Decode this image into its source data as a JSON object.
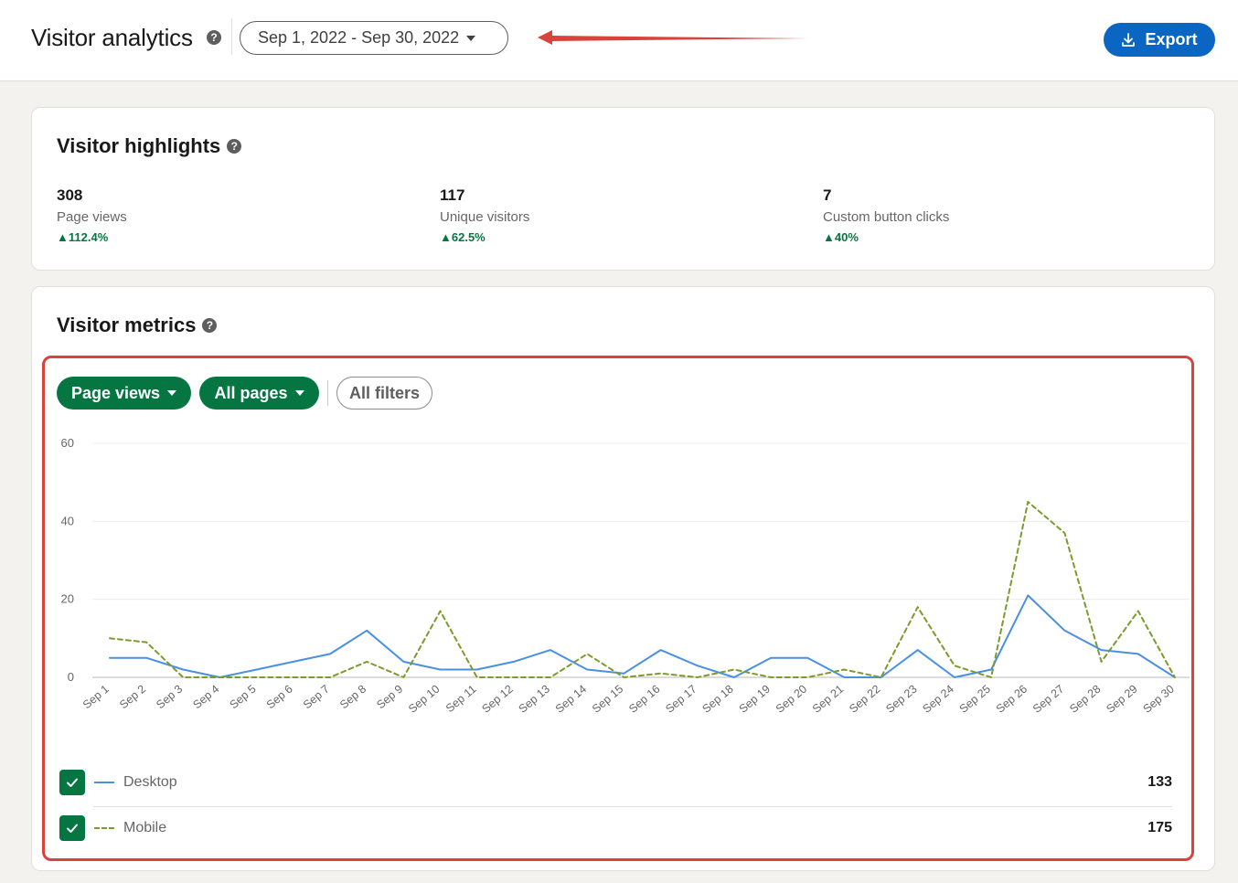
{
  "header": {
    "title": "Visitor analytics",
    "help_icon": "question-icon",
    "date_range": "Sep 1, 2022 - Sep 30, 2022",
    "export_label": "Export",
    "export_icon": "download-icon"
  },
  "highlights": {
    "title": "Visitor highlights",
    "stats": [
      {
        "value": "308",
        "label": "Page views",
        "change": "112.4%"
      },
      {
        "value": "117",
        "label": "Unique visitors",
        "change": "62.5%"
      },
      {
        "value": "7",
        "label": "Custom button clicks",
        "change": "40%"
      }
    ]
  },
  "metrics": {
    "title": "Visitor metrics",
    "filters": {
      "metric": "Page views",
      "pages": "All pages",
      "all_filters": "All filters"
    },
    "legend": [
      {
        "label": "Desktop",
        "total": "133",
        "checked": true
      },
      {
        "label": "Mobile",
        "total": "175",
        "checked": true
      }
    ]
  },
  "colors": {
    "brand_blue": "#0a66c2",
    "brand_green": "#057642",
    "desktop_line": "#4a90e2",
    "mobile_line": "#7d9b2c",
    "annotation_red": "#d9433c"
  },
  "chart_data": {
    "type": "line",
    "categories": [
      "Sep 1",
      "Sep 2",
      "Sep 3",
      "Sep 4",
      "Sep 5",
      "Sep 6",
      "Sep 7",
      "Sep 8",
      "Sep 9",
      "Sep 10",
      "Sep 11",
      "Sep 12",
      "Sep 13",
      "Sep 14",
      "Sep 15",
      "Sep 16",
      "Sep 17",
      "Sep 18",
      "Sep 19",
      "Sep 20",
      "Sep 21",
      "Sep 22",
      "Sep 23",
      "Sep 24",
      "Sep 25",
      "Sep 26",
      "Sep 27",
      "Sep 28",
      "Sep 29",
      "Sep 30"
    ],
    "yticks": [
      0,
      20,
      40,
      60
    ],
    "ylim": [
      0,
      60
    ],
    "grid": true,
    "series": [
      {
        "name": "Desktop",
        "style": "solid",
        "values": [
          5,
          5,
          2,
          0,
          2,
          4,
          6,
          12,
          4,
          2,
          2,
          4,
          7,
          2,
          1,
          7,
          3,
          0,
          5,
          5,
          0,
          0,
          7,
          0,
          2,
          21,
          12,
          7,
          6,
          0
        ]
      },
      {
        "name": "Mobile",
        "style": "dashed",
        "values": [
          10,
          9,
          0,
          0,
          0,
          0,
          0,
          4,
          0,
          17,
          0,
          0,
          0,
          6,
          0,
          1,
          0,
          2,
          0,
          0,
          2,
          0,
          18,
          3,
          0,
          45,
          37,
          4,
          17,
          0
        ]
      }
    ]
  }
}
